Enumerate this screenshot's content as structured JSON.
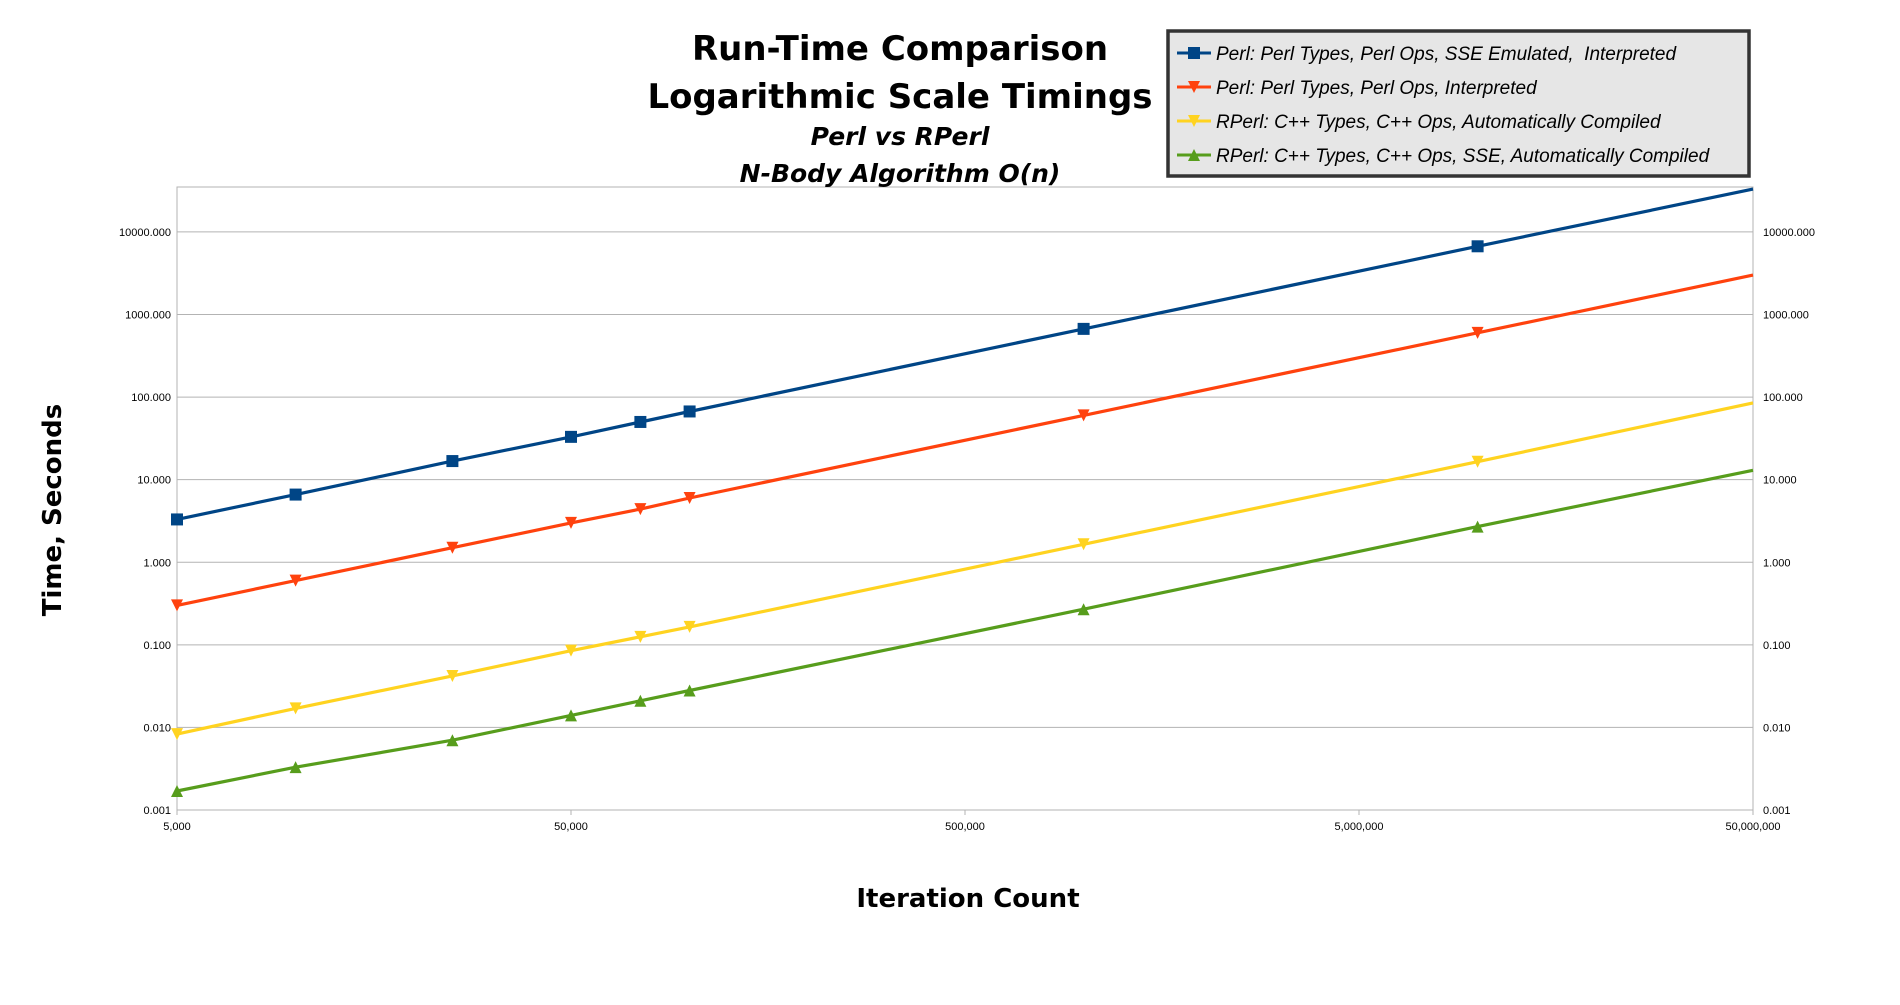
{
  "chart_data": {
    "type": "line",
    "title": "Run-Time Comparison",
    "subtitle_lines": [
      "Logarithmic Scale Timings",
      "Perl vs RPerl",
      "N-Body Algorithm O(n)"
    ],
    "xlabel": "Iteration Count",
    "ylabel": "Time, Seconds",
    "x_scale": "log",
    "y_scale": "log",
    "xlim": [
      5000,
      50000000
    ],
    "ylim": [
      0.001,
      35000
    ],
    "x_ticks": [
      5000,
      50000,
      500000,
      5000000,
      50000000
    ],
    "x_tick_labels": [
      "5,000",
      "50,000",
      "500,000",
      "5,000,000",
      "50,000,000"
    ],
    "y_ticks": [
      0.001,
      0.01,
      0.1,
      1,
      10,
      100,
      1000,
      10000
    ],
    "y_tick_labels": [
      "0.001",
      "0.010",
      "0.100",
      "1.000",
      "10.000",
      "100.000",
      "1000.000",
      "10000.000"
    ],
    "secondary_y_axis": true,
    "grid": true,
    "legend_position": "top-right",
    "series": [
      {
        "name": "Perl: Perl Types, Perl Ops, SSE Emulated,  Interpreted",
        "color": "#004586",
        "marker": "square",
        "x": [
          5000,
          10000,
          25000,
          50000,
          75000,
          100000,
          1000000,
          10000000,
          50000000
        ],
        "y": [
          3.3,
          6.6,
          16.8,
          33,
          50,
          67,
          670,
          6700,
          33000
        ]
      },
      {
        "name": "Perl: Perl Types, Perl Ops, Interpreted",
        "color": "#ff420e",
        "marker": "triangle-down",
        "x": [
          5000,
          10000,
          25000,
          50000,
          75000,
          100000,
          1000000,
          10000000,
          50000000
        ],
        "y": [
          0.3,
          0.6,
          1.5,
          3.0,
          4.4,
          6.0,
          60,
          600,
          3000
        ]
      },
      {
        "name": "RPerl: C++ Types, C++ Ops, Automatically Compiled",
        "color": "#ffd320",
        "marker": "triangle-down",
        "x": [
          5000,
          10000,
          25000,
          50000,
          75000,
          100000,
          1000000,
          10000000,
          50000000
        ],
        "y": [
          0.0083,
          0.017,
          0.042,
          0.085,
          0.125,
          0.165,
          1.65,
          16.5,
          85
        ]
      },
      {
        "name": "RPerl: C++ Types, C++ Ops, SSE, Automatically Compiled",
        "color": "#579d1c",
        "marker": "triangle-up",
        "x": [
          5000,
          10000,
          25000,
          50000,
          75000,
          100000,
          1000000,
          10000000,
          50000000
        ],
        "y": [
          0.0017,
          0.0033,
          0.007,
          0.014,
          0.021,
          0.028,
          0.27,
          2.7,
          13
        ]
      }
    ]
  }
}
